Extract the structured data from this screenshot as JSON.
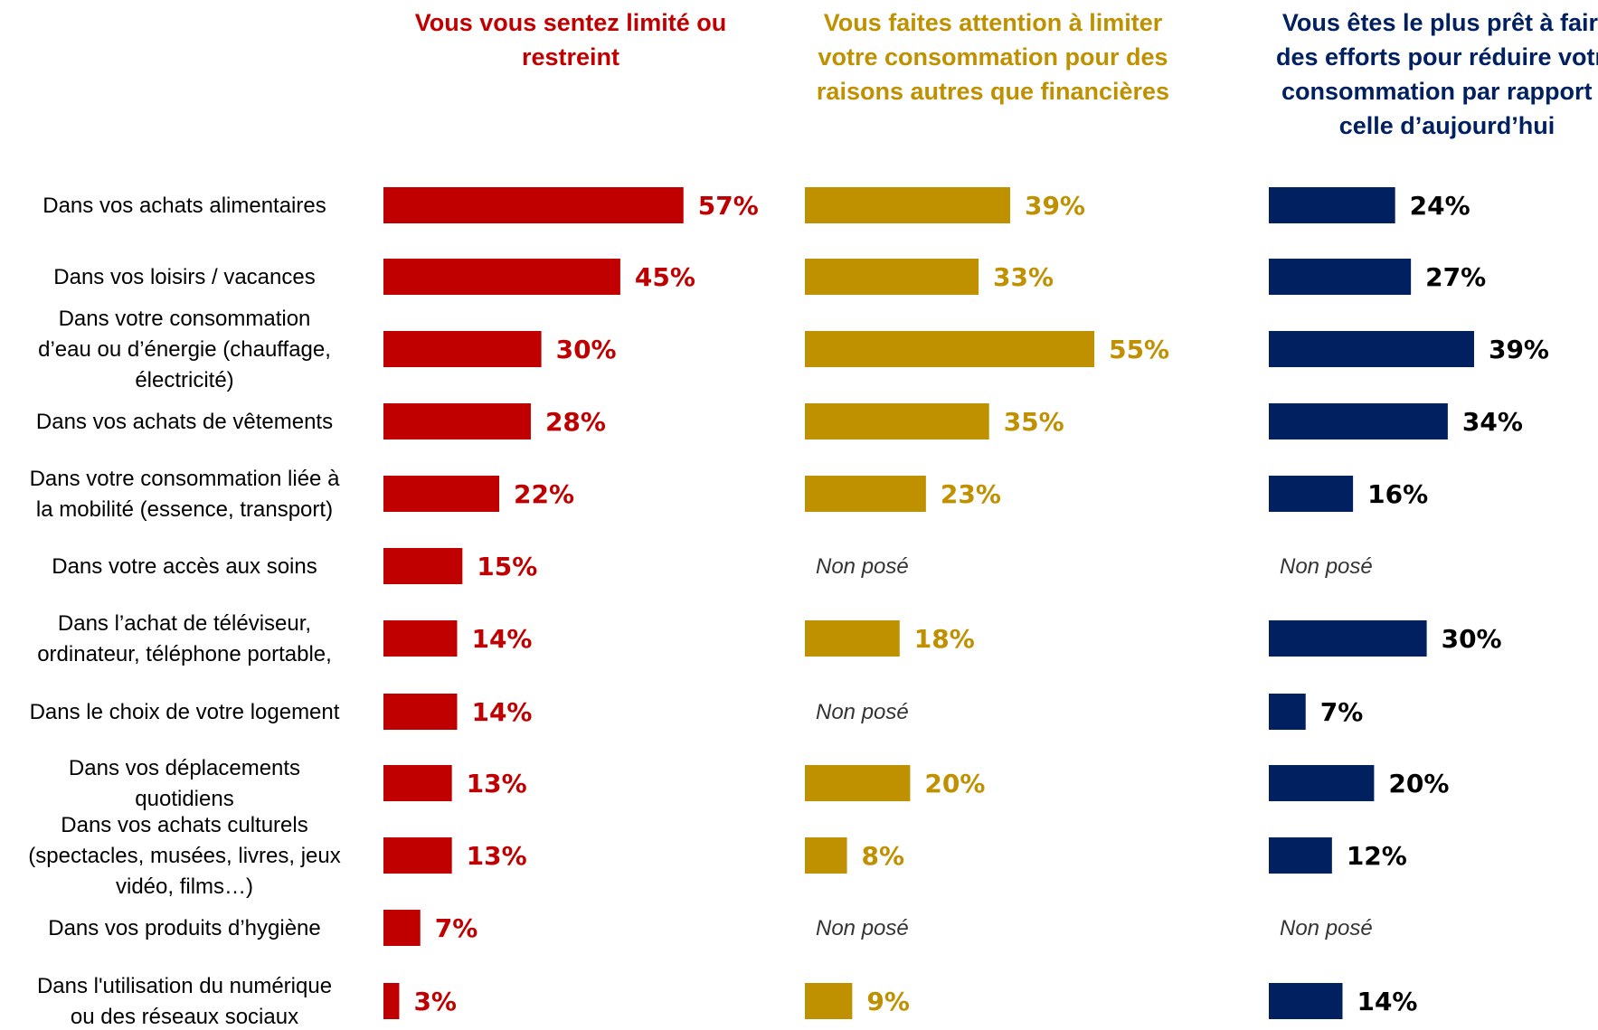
{
  "chart_data": {
    "type": "bar",
    "orientation": "horizontal",
    "categories": [
      "Dans vos achats alimentaires",
      "Dans vos loisirs / vacances",
      "Dans votre consommation d’eau ou d’énergie (chauffage, électricité)",
      "Dans vos achats de vêtements",
      "Dans votre consommation liée à la mobilité (essence, transport)",
      "Dans votre accès aux soins",
      "Dans l’achat de téléviseur, ordinateur, téléphone portable,",
      "Dans le choix de votre logement",
      "Dans vos déplacements quotidiens",
      "Dans vos achats culturels (spectacles, musées, livres, jeux vidéo, films…)",
      "Dans vos produits d’hygiène",
      "Dans l'utilisation du numérique ou des réseaux sociaux"
    ],
    "category_lines": [
      [
        "Dans vos achats alimentaires"
      ],
      [
        "Dans vos loisirs / vacances"
      ],
      [
        "Dans votre consommation",
        "d’eau ou d’énergie (chauffage,",
        "électricité)"
      ],
      [
        "Dans vos achats de vêtements"
      ],
      [
        "Dans votre consommation liée à",
        "la mobilité (essence, transport)"
      ],
      [
        "Dans votre accès aux soins"
      ],
      [
        "Dans l’achat de téléviseur,",
        "ordinateur, téléphone portable,"
      ],
      [
        "Dans le choix de votre logement"
      ],
      [
        "Dans vos déplacements",
        "quotidiens"
      ],
      [
        "Dans vos achats culturels",
        "(spectacles, musées, livres, jeux",
        "vidéo, films…)"
      ],
      [
        "Dans vos produits d’hygiène"
      ],
      [
        "Dans l'utilisation du numérique",
        "ou des réseaux sociaux"
      ]
    ],
    "series": [
      {
        "name": "Vous vous sentez limité ou restreint",
        "name_lines": [
          "Vous vous sentez limité ou",
          "restreint"
        ],
        "color": "#C00000",
        "values": [
          57,
          45,
          30,
          28,
          22,
          15,
          14,
          14,
          13,
          13,
          7,
          3
        ]
      },
      {
        "name": "Vous faites attention à limiter votre consommation pour des raisons autres que financières",
        "name_lines": [
          "Vous faites attention à limiter",
          "votre consommation pour des",
          "raisons autres que financières"
        ],
        "color": "#BF9000",
        "values": [
          39,
          33,
          55,
          35,
          23,
          null,
          18,
          null,
          20,
          8,
          null,
          9
        ]
      },
      {
        "name": "Vous êtes le plus prêt à faire des efforts pour réduire votre consommation par rapport à celle d’aujourd’hui",
        "name_lines": [
          "Vous êtes le plus prêt à faire",
          "des efforts pour réduire votre",
          "consommation par rapport à",
          "celle d’aujourd’hui"
        ],
        "color": "#002060",
        "label_color": "#000000",
        "values": [
          24,
          27,
          39,
          34,
          16,
          null,
          30,
          7,
          20,
          12,
          null,
          14
        ]
      }
    ],
    "value_suffix": "%",
    "missing_label": "Non posé",
    "grid": false,
    "legend": "none"
  }
}
